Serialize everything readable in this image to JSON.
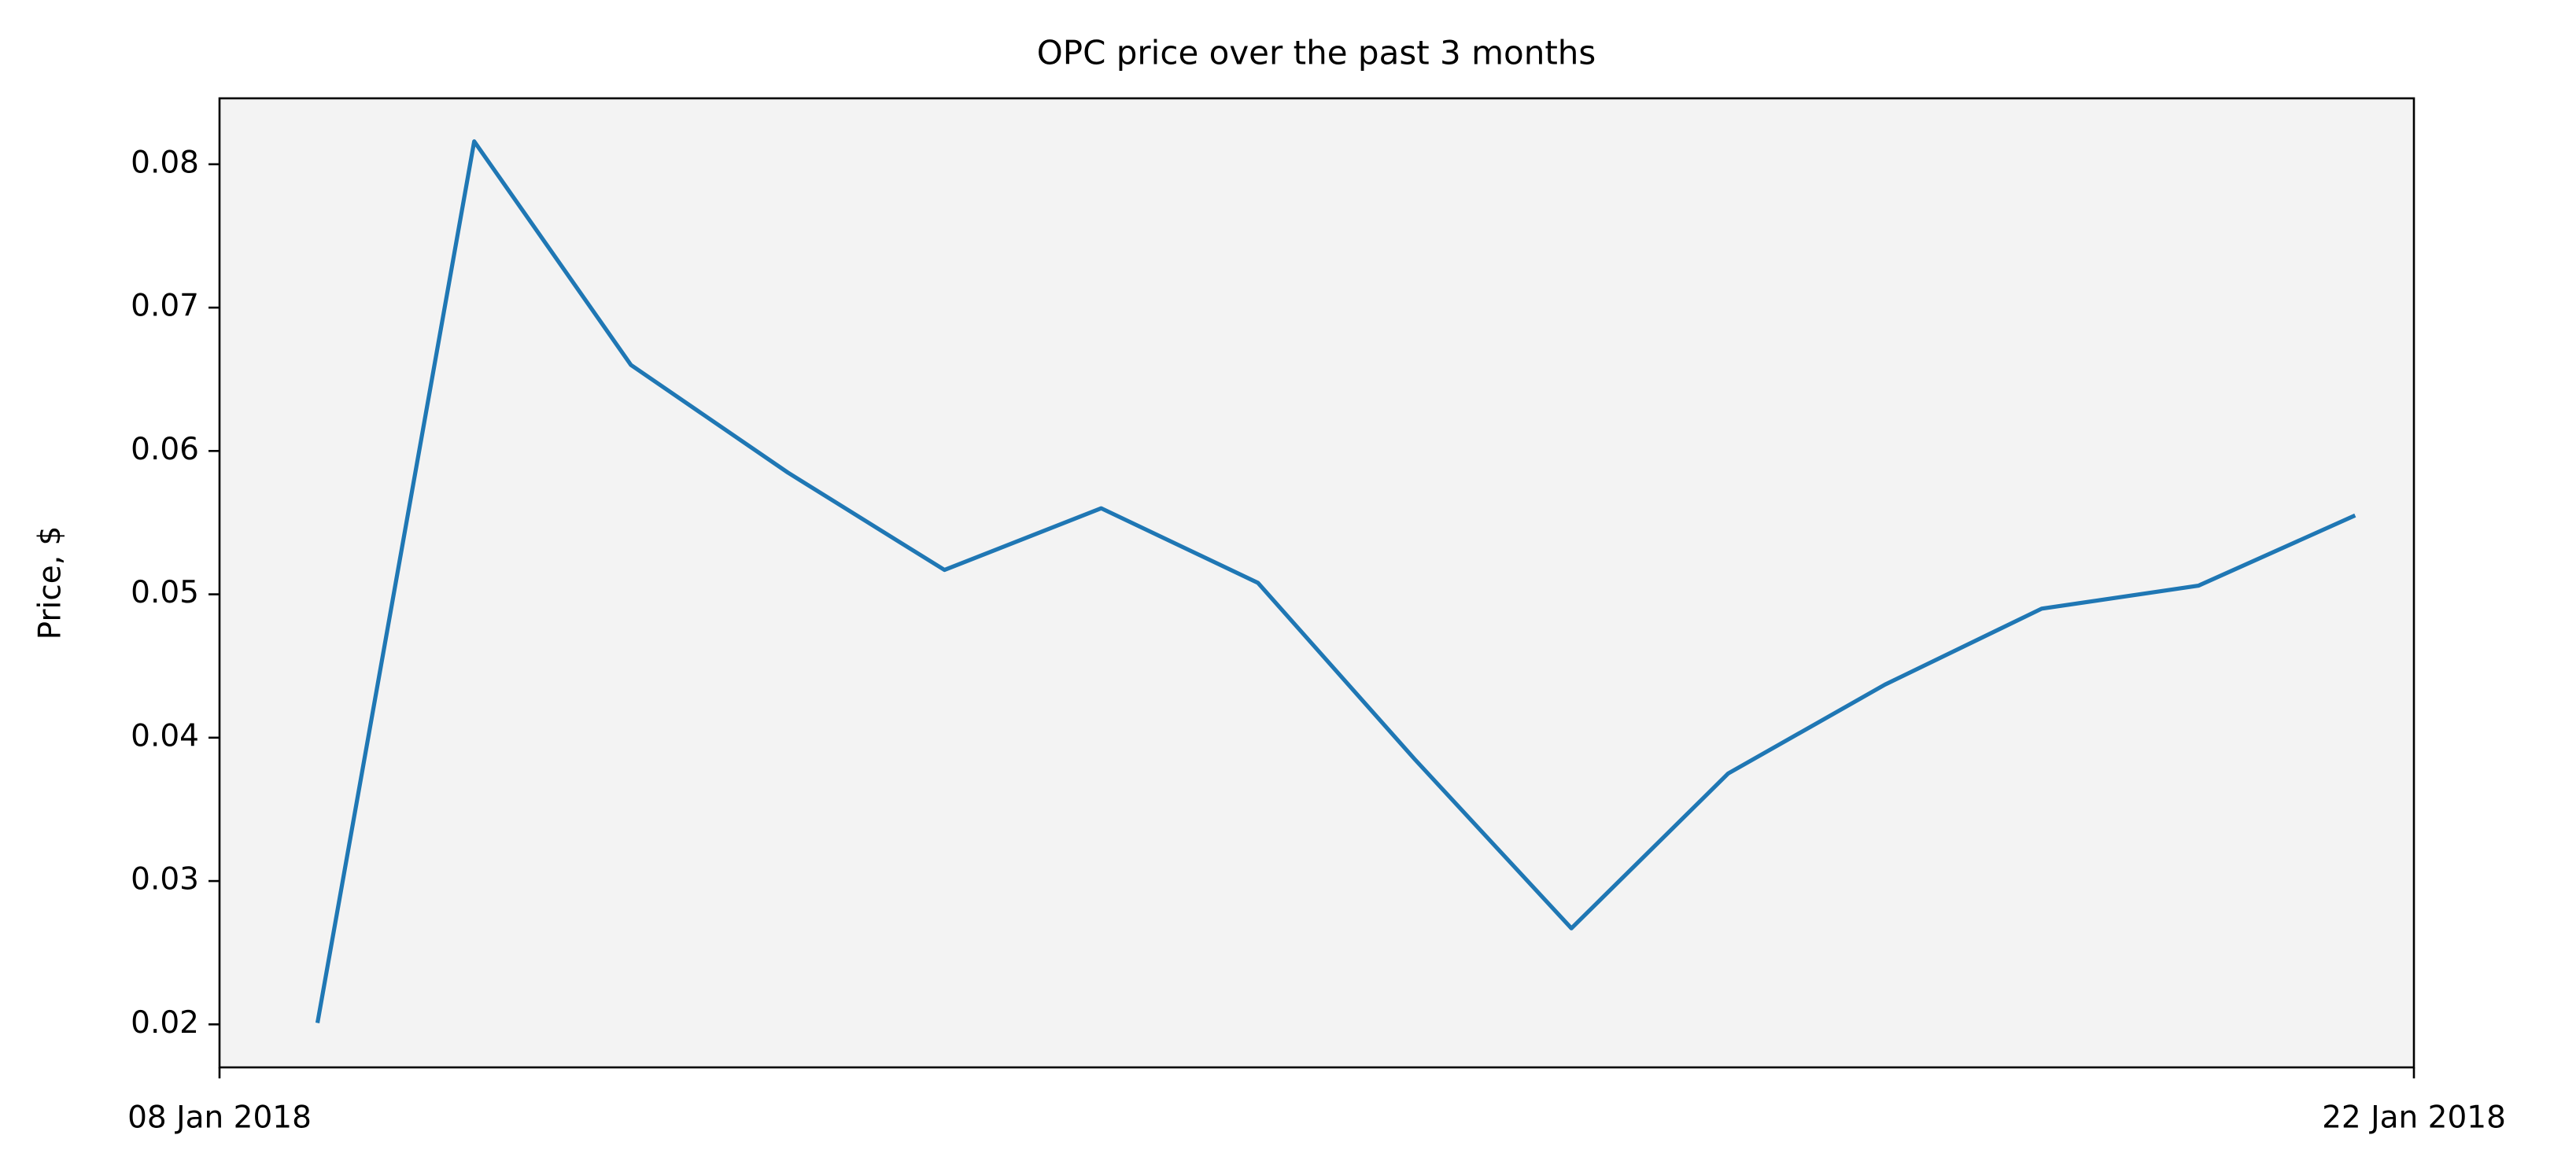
{
  "chart_data": {
    "type": "line",
    "title": "OPC price over the past 3 months",
    "xlabel": "",
    "ylabel": "Price, $",
    "x_tick_labels": [
      "08 Jan 2018",
      "22 Jan 2018"
    ],
    "xlim": [
      "2018-01-08",
      "2018-01-22"
    ],
    "ylim": [
      0.017,
      0.0846
    ],
    "y_ticks": [
      0.02,
      0.03,
      0.04,
      0.05,
      0.06,
      0.07,
      0.08
    ],
    "y_tick_labels": [
      "0.02",
      "0.03",
      "0.04",
      "0.05",
      "0.06",
      "0.07",
      "0.08"
    ],
    "grid": false,
    "background_color": "#f3f3f3",
    "series": [
      {
        "color": "#1f77b4",
        "x": [
          "2018-01-08 15:00",
          "2018-01-09 15:00",
          "2018-01-10 15:00",
          "2018-01-11 15:00",
          "2018-01-12 15:00",
          "2018-01-13 15:00",
          "2018-01-14 15:00",
          "2018-01-15 15:00",
          "2018-01-16 15:00",
          "2018-01-17 15:00",
          "2018-01-18 15:00",
          "2018-01-19 15:00",
          "2018-01-20 15:00",
          "2018-01-21 15:00"
        ],
        "values": [
          0.0201,
          0.0816,
          0.066,
          0.0585,
          0.0517,
          0.056,
          0.0508,
          0.0385,
          0.0267,
          0.0375,
          0.0437,
          0.049,
          0.0506,
          0.0555
        ]
      }
    ]
  }
}
